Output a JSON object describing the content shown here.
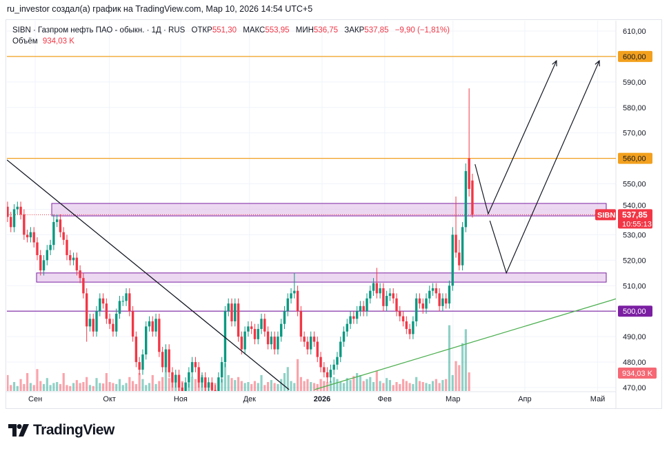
{
  "credit": "ru_investor создал(а) график на TradingView.com, Мар 10, 2026 14:54 UTC+5",
  "legend": {
    "symbol": "SIBN · Газпром нефть ПАО - обыкн. · 1Д · RUS",
    "open_label": "ОТКР",
    "open": "551,30",
    "high_label": "МАКС",
    "high": "553,95",
    "low_label": "МИН",
    "low": "536,75",
    "close_label": "ЗАКР",
    "close": "537,85",
    "change": "−9,90 (−1,81%)",
    "volume_label": "Объём",
    "volume": "934,03 K"
  },
  "axis": {
    "price_ticks": [
      "470,00",
      "480,00",
      "490,00",
      "500,00",
      "510,00",
      "520,00",
      "530,00",
      "540,00",
      "550,00",
      "560,00",
      "570,00",
      "580,00",
      "590,00",
      "600,00",
      "610,00"
    ],
    "labels": {
      "level_600": "600,00",
      "level_560": "560,00",
      "level_500": "500,00",
      "symbol_tag": "SIBN",
      "last_price": "537,85",
      "countdown": "10:55:13",
      "last_volume": "934,03 K"
    }
  },
  "logo": {
    "text": "TradingView"
  },
  "colors": {
    "up": "#089981",
    "down": "#f23645",
    "level_orange": "#f2a01d",
    "level_purple": "#7b1fa2",
    "zone_fill": "#e1bee7",
    "trend_green": "#4caf50",
    "trend_black": "#131722"
  },
  "chart_data": {
    "type": "candlestick",
    "title": "SIBN · Газпром нефть ПАО - обыкн. · 1Д · RUS",
    "ylim": [
      470,
      610
    ],
    "grid": true,
    "x_ticks": [
      {
        "label": "Сен",
        "bar": 8.4
      },
      {
        "label": "Окт",
        "bar": 30.9
      },
      {
        "label": "Ноя",
        "bar": 52.5
      },
      {
        "label": "Дек",
        "bar": 73.4
      },
      {
        "label": "2026",
        "bar": 95.4,
        "bold": true
      },
      {
        "label": "Фев",
        "bar": 114.4
      },
      {
        "label": "Мар",
        "bar": 135.1
      },
      {
        "label": "Апр",
        "bar": 156.9
      },
      {
        "label": "Май",
        "bar": 179
      }
    ],
    "open": [
      541,
      537,
      533,
      540,
      541,
      538,
      530,
      529,
      531,
      527,
      522,
      516,
      520,
      524,
      526,
      535,
      536,
      531,
      528,
      522,
      520,
      521,
      516,
      513,
      507,
      494,
      497,
      492,
      500,
      505,
      503,
      497,
      495,
      492,
      499,
      504,
      504,
      507,
      500,
      490,
      480,
      477,
      483,
      494,
      496,
      492,
      497,
      484,
      478,
      485,
      476,
      472,
      475,
      470,
      468,
      472,
      476,
      480,
      478,
      472,
      474,
      470,
      472,
      469,
      468,
      474,
      480,
      500,
      503,
      496,
      503,
      490,
      485,
      492,
      494,
      493,
      489,
      493,
      497,
      492,
      487,
      490,
      485,
      490,
      495,
      500,
      505,
      507,
      508,
      500,
      490,
      488,
      485,
      490,
      488,
      482,
      478,
      476,
      474,
      477,
      479,
      482,
      488,
      492,
      495,
      498,
      497,
      500,
      502,
      500,
      505,
      508,
      511,
      507,
      509,
      502,
      506,
      507,
      505,
      500,
      498,
      496,
      493,
      491,
      496,
      505,
      503,
      501,
      505,
      508,
      509,
      507,
      502,
      505,
      503,
      510,
      530,
      523,
      518,
      533,
      560,
      551.3
    ],
    "high": [
      543,
      539,
      542,
      543,
      543,
      540,
      532,
      533,
      533,
      529,
      524,
      522,
      526,
      528,
      538,
      538,
      538,
      533,
      530,
      524,
      523,
      523,
      518,
      515,
      509,
      499,
      499,
      502,
      507,
      507,
      505,
      499,
      497,
      501,
      506,
      506,
      509,
      509,
      502,
      492,
      482,
      485,
      496,
      498,
      498,
      499,
      499,
      486,
      487,
      487,
      478,
      477,
      477,
      472,
      474,
      478,
      482,
      482,
      480,
      476,
      476,
      474,
      474,
      471,
      476,
      482,
      502,
      505,
      505,
      505,
      505,
      492,
      494,
      496,
      496,
      495,
      495,
      499,
      499,
      494,
      492,
      492,
      492,
      497,
      502,
      507,
      509,
      515,
      510,
      502,
      492,
      490,
      492,
      492,
      490,
      484,
      480,
      478,
      479,
      481,
      484,
      490,
      494,
      497,
      500,
      500,
      502,
      504,
      504,
      507,
      510,
      513,
      517,
      511,
      511,
      508,
      509,
      509,
      507,
      502,
      500,
      498,
      495,
      498,
      507,
      507,
      505,
      507,
      510,
      511,
      511,
      509,
      507,
      507,
      512,
      533,
      545,
      528,
      535,
      558,
      587.5,
      553.95
    ],
    "low": [
      535,
      531,
      531,
      538,
      536,
      528,
      527,
      527,
      525,
      520,
      514,
      514,
      518,
      522,
      524,
      533,
      529,
      526,
      520,
      518,
      518,
      514,
      511,
      505,
      488,
      492,
      490,
      490,
      498,
      501,
      495,
      493,
      490,
      490,
      497,
      502,
      502,
      498,
      488,
      478,
      475,
      475,
      481,
      492,
      490,
      490,
      482,
      476,
      476,
      474,
      470,
      470,
      468,
      466,
      466,
      470,
      474,
      476,
      470,
      470,
      468,
      468,
      467,
      466,
      466,
      472,
      478,
      498,
      494,
      494,
      488,
      483,
      483,
      490,
      491,
      487,
      487,
      491,
      490,
      485,
      485,
      483,
      483,
      488,
      493,
      498,
      503,
      505,
      498,
      488,
      486,
      483,
      483,
      486,
      480,
      476,
      474,
      472,
      472,
      475,
      477,
      480,
      486,
      490,
      493,
      495,
      495,
      498,
      498,
      498,
      503,
      506,
      505,
      505,
      500,
      500,
      504,
      503,
      498,
      496,
      494,
      491,
      489,
      489,
      494,
      501,
      499,
      499,
      503,
      506,
      505,
      500,
      500,
      501,
      501,
      508,
      521,
      516,
      516,
      531,
      545,
      536.75
    ],
    "close": [
      537,
      533,
      540,
      541,
      538,
      530,
      529,
      531,
      527,
      522,
      516,
      520,
      524,
      526,
      535,
      536,
      531,
      528,
      522,
      520,
      521,
      516,
      513,
      507,
      494,
      497,
      492,
      500,
      505,
      503,
      497,
      495,
      492,
      499,
      504,
      504,
      507,
      500,
      490,
      480,
      477,
      483,
      494,
      496,
      492,
      497,
      484,
      478,
      485,
      476,
      472,
      475,
      470,
      468,
      472,
      476,
      480,
      478,
      472,
      474,
      470,
      472,
      469,
      468,
      474,
      480,
      500,
      503,
      496,
      503,
      490,
      485,
      492,
      494,
      493,
      489,
      493,
      497,
      492,
      487,
      490,
      485,
      490,
      495,
      500,
      505,
      507,
      508,
      500,
      490,
      488,
      485,
      490,
      488,
      482,
      478,
      476,
      474,
      477,
      479,
      482,
      488,
      492,
      495,
      498,
      497,
      500,
      502,
      500,
      505,
      508,
      511,
      507,
      509,
      502,
      506,
      507,
      505,
      500,
      498,
      496,
      493,
      491,
      496,
      505,
      503,
      501,
      505,
      508,
      509,
      507,
      502,
      505,
      503,
      510,
      530,
      523,
      518,
      533,
      555,
      548,
      537.85
    ],
    "volume_k": [
      800,
      300,
      450,
      250,
      600,
      350,
      900,
      400,
      300,
      1100,
      500,
      350,
      650,
      300,
      400,
      450,
      350,
      900,
      300,
      250,
      400,
      550,
      400,
      450,
      700,
      300,
      250,
      650,
      400,
      380,
      900,
      450,
      400,
      350,
      600,
      300,
      400,
      700,
      500,
      350,
      900,
      600,
      300,
      400,
      800,
      350,
      500,
      700,
      1300,
      650,
      900,
      800,
      600,
      500,
      350,
      400,
      700,
      600,
      500,
      800,
      350,
      450,
      300,
      400,
      550,
      600,
      1400,
      800,
      650,
      550,
      700,
      500,
      400,
      450,
      350,
      500,
      400,
      800,
      300,
      450,
      550,
      400,
      350,
      600,
      900,
      1200,
      500,
      400,
      1600,
      700,
      500,
      600,
      450,
      400,
      350,
      600,
      500,
      450,
      500,
      700,
      600,
      450,
      400,
      650,
      550,
      750,
      900,
      800,
      500,
      600,
      700,
      450,
      1000,
      500,
      400,
      650,
      550,
      300,
      450,
      350,
      600,
      500,
      400,
      350,
      700,
      500,
      450,
      400,
      350,
      500,
      600,
      400,
      550,
      600,
      3300,
      800,
      1500,
      1300,
      2400,
      3100,
      934.03
    ],
    "levels": [
      {
        "price": 600,
        "color": "#f2a01d"
      },
      {
        "price": 560,
        "color": "#f2a01d"
      },
      {
        "price": 500,
        "color": "#7b1fa2"
      }
    ],
    "zones": [
      {
        "bar_from": 13.4,
        "bar_to": 181.6,
        "price_low": 537.4,
        "price_high": 542.3
      },
      {
        "bar_from": 8.8,
        "bar_to": 181.6,
        "price_low": 511.4,
        "price_high": 515
      }
    ],
    "trendlines": [
      {
        "color": "#131722",
        "points": [
          [
            -0.2,
            559.4
          ],
          [
            85.4,
            469.2
          ]
        ]
      },
      {
        "color": "#4caf50",
        "points": [
          [
            93.1,
            469.2
          ],
          [
            184.7,
            504.9
          ]
        ]
      }
    ],
    "arrow_paths": [
      [
        [
          141.8,
          557.7
        ],
        [
          145.8,
          538.2
        ],
        [
          166.5,
          598.3
        ]
      ],
      [
        [
          146.3,
          535.5
        ],
        [
          151.3,
          515
        ],
        [
          179.5,
          598.3
        ]
      ]
    ]
  }
}
